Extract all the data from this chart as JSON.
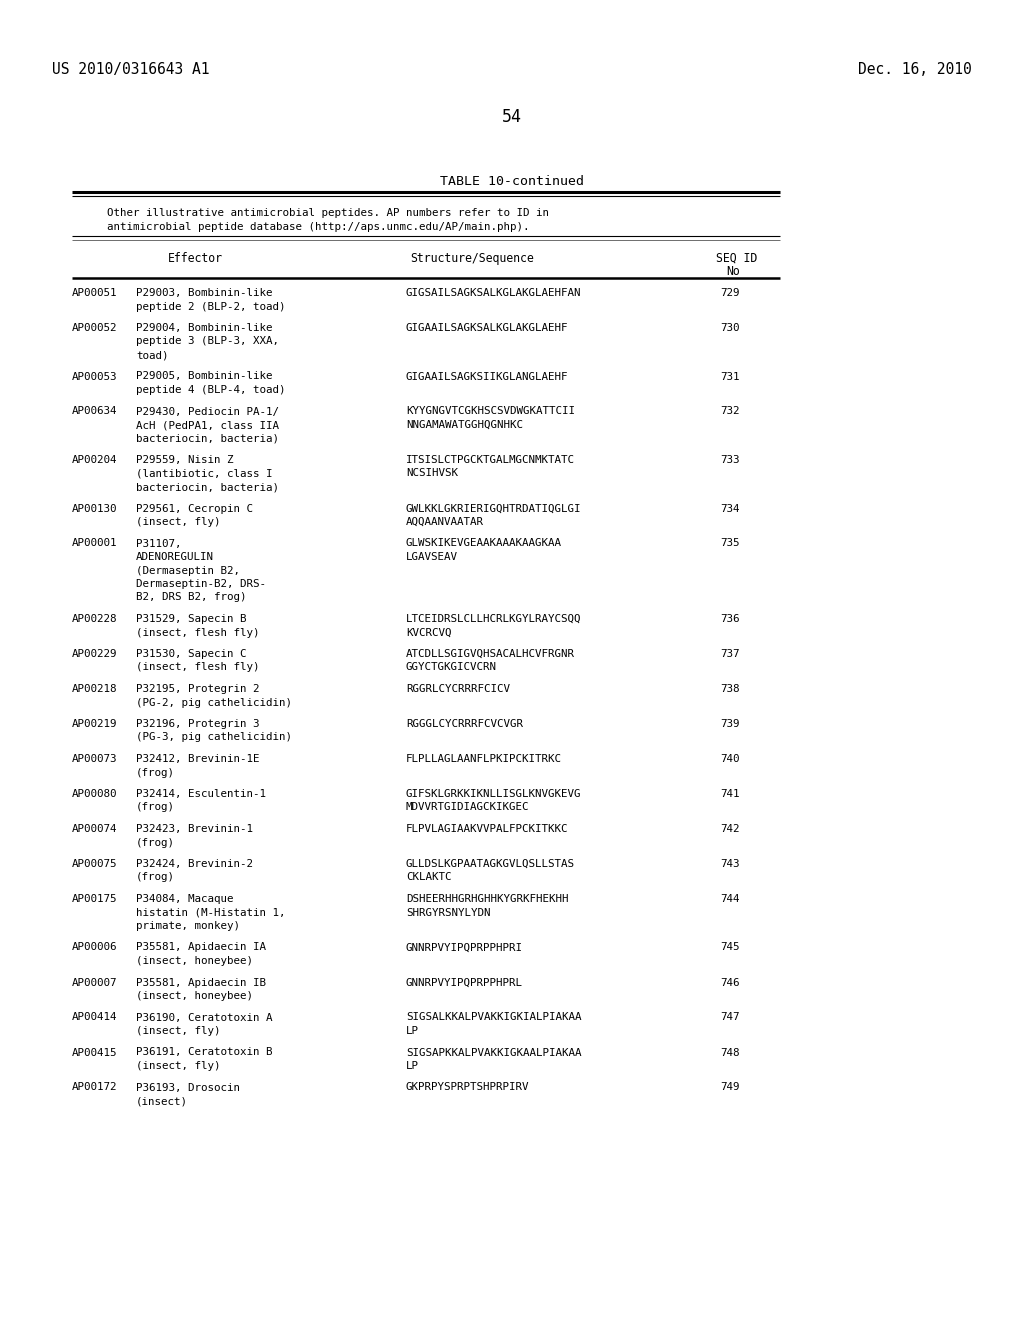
{
  "patent_number": "US 2010/0316643 A1",
  "patent_date": "Dec. 16, 2010",
  "page_number": "54",
  "table_title": "TABLE 10-continued",
  "table_caption_1": "Other illustrative antimicrobial peptides. AP numbers refer to ID in",
  "table_caption_2": "antimicrobial peptide database (http://aps.unmc.edu/AP/main.php).",
  "col_effector": "Effector",
  "col_sequence": "Structure/Sequence",
  "col_seqid_1": "SEQ ID",
  "col_seqid_2": "No",
  "rows": [
    [
      "AP00051",
      "P29003, Bombinin-like\npeptide 2 (BLP-2, toad)",
      "GIGSAILSAGKSALKGLAKGLAEHFAN",
      "729"
    ],
    [
      "AP00052",
      "P29004, Bombinin-like\npeptide 3 (BLP-3, XXA,\ntoad)",
      "GIGAAILSAGKSALKGLAKGLAEHF",
      "730"
    ],
    [
      "AP00053",
      "P29005, Bombinin-like\npeptide 4 (BLP-4, toad)",
      "GIGAAILSAGKSIIKGLANGLAEHF",
      "731"
    ],
    [
      "AP00634",
      "P29430, Pediocin PA-1/\nAcH (PedPA1, class IIA\nbacteriocin, bacteria)",
      "KYYGNGVTCGKHSCSVDWGKATTCII\nNNGAMAWATGGHQGNHKC",
      "732"
    ],
    [
      "AP00204",
      "P29559, Nisin Z\n(lantibiotic, class I\nbacteriocin, bacteria)",
      "ITSISLCTPGCKTGALMGCNMKTATC\nNCSIHVSK",
      "733"
    ],
    [
      "AP00130",
      "P29561, Cecropin C\n(insect, fly)",
      "GWLKKLGKRIERIGQHTRDATIQGLGI\nAQQAANVAATAR",
      "734"
    ],
    [
      "AP00001",
      "P31107,\nADENOREGULIN\n(Dermaseptin B2,\nDermaseptin-B2, DRS-\nB2, DRS B2, frog)",
      "GLWSKIKEVGEAAKAAAKAAGKAA\nLGAVSEAV",
      "735"
    ],
    [
      "AP00228",
      "P31529, Sapecin B\n(insect, flesh fly)",
      "LTCEIDRSLCLLHCRLKGYLRAYCSQQ\nKVCRCVQ",
      "736"
    ],
    [
      "AP00229",
      "P31530, Sapecin C\n(insect, flesh fly)",
      "ATCDLLSGIGVQHSACALHCVFRGNR\nGGYCTGKGICVCRN",
      "737"
    ],
    [
      "AP00218",
      "P32195, Protegrin 2\n(PG-2, pig cathelicidin)",
      "RGGRLCYCRRRFCICV",
      "738"
    ],
    [
      "AP00219",
      "P32196, Protegrin 3\n(PG-3, pig cathelicidin)",
      "RGGGLCYCRRRFCVCVGR",
      "739"
    ],
    [
      "AP00073",
      "P32412, Brevinin-1E\n(frog)",
      "FLPLLAGLAANFLPKIPCKITRKC",
      "740"
    ],
    [
      "AP00080",
      "P32414, Esculentin-1\n(frog)",
      "GIFSKLGRKKIKNLLISGLKNVGKEVG\nMDVVRTGIDIAGCKIKGEC",
      "741"
    ],
    [
      "AP00074",
      "P32423, Brevinin-1\n(frog)",
      "FLPVLAGIAAKVVPALFPCKITKKC",
      "742"
    ],
    [
      "AP00075",
      "P32424, Brevinin-2\n(frog)",
      "GLLDSLKGPAATAGKGVLQSLLSTAS\nCKLAKTC",
      "743"
    ],
    [
      "AP00175",
      "P34084, Macaque\nhistatin (M-Histatin 1,\nprimate, monkey)",
      "DSHEERHHGRHGHHKYGRKFHEKHH\nSHRGYRSNYLYDN",
      "744"
    ],
    [
      "AP00006",
      "P35581, Apidaecin IA\n(insect, honeybee)",
      "GNNRPVYIPQPRPPHPRI",
      "745"
    ],
    [
      "AP00007",
      "P35581, Apidaecin IB\n(insect, honeybee)",
      "GNNRPVYIPQPRPPHPRL",
      "746"
    ],
    [
      "AP00414",
      "P36190, Ceratotoxin A\n(insect, fly)",
      "SIGSALKKALPVAKKIGKIALPIAKAA\nLP",
      "747"
    ],
    [
      "AP00415",
      "P36191, Ceratotoxin B\n(insect, fly)",
      "SIGSAPKKALPVAKKIGKAALPIAKAA\nLP",
      "748"
    ],
    [
      "AP00172",
      "P36193, Drosocin\n(insect)",
      "GKPRPYSPRPTSHPRPIRV",
      "749"
    ]
  ],
  "bg_color": "#ffffff",
  "text_color": "#000000",
  "font_size": 7.8,
  "title_font_size": 9.5
}
